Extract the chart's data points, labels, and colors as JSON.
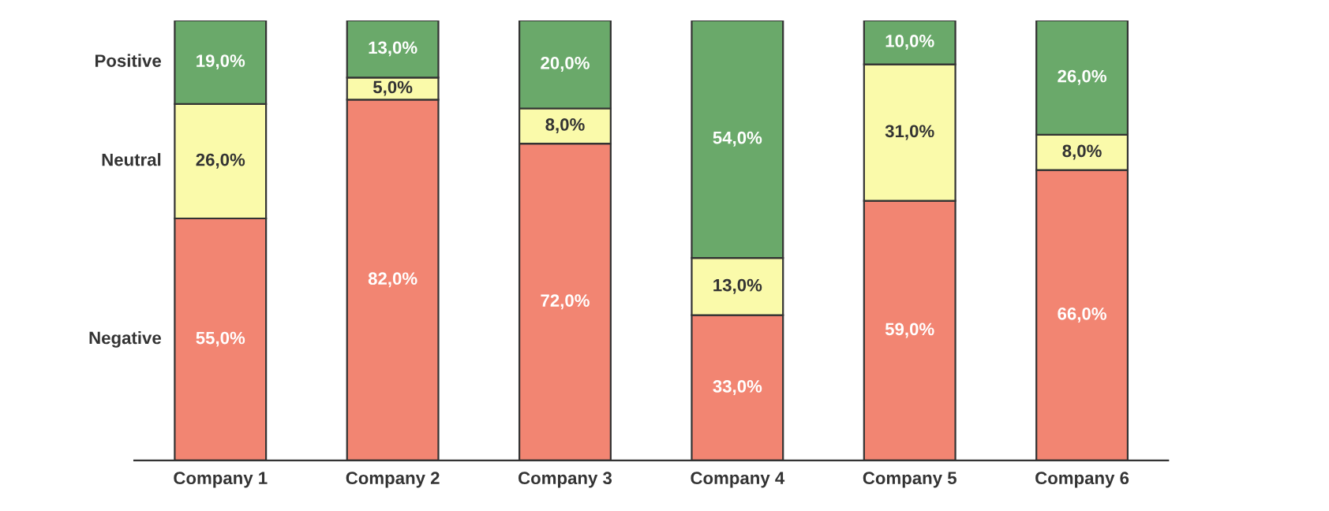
{
  "chart_data": {
    "type": "bar",
    "stacked": true,
    "categories": [
      "Company 1",
      "Company 2",
      "Company 3",
      "Company 4",
      "Company 5",
      "Company 6"
    ],
    "ylim": [
      0,
      100
    ],
    "series": [
      {
        "name": "Negative",
        "color": "#f28572",
        "values": [
          55,
          82,
          72,
          33,
          59,
          66
        ],
        "value_labels": [
          "55,0%",
          "82,0%",
          "72,0%",
          "33,0%",
          "59,0%",
          "66,0%"
        ]
      },
      {
        "name": "Neutral",
        "color": "#fafaaa",
        "values": [
          26,
          5,
          8,
          13,
          31,
          8
        ],
        "value_labels": [
          "26,0%",
          "5,0%",
          "8,0%",
          "13,0%",
          "31,0%",
          "8,0%"
        ]
      },
      {
        "name": "Positive",
        "color": "#6aa96a",
        "values": [
          19,
          13,
          20,
          54,
          10,
          26
        ],
        "value_labels": [
          "19,0%",
          "13,0%",
          "20,0%",
          "54,0%",
          "10,0%",
          "26,0%"
        ]
      }
    ]
  }
}
